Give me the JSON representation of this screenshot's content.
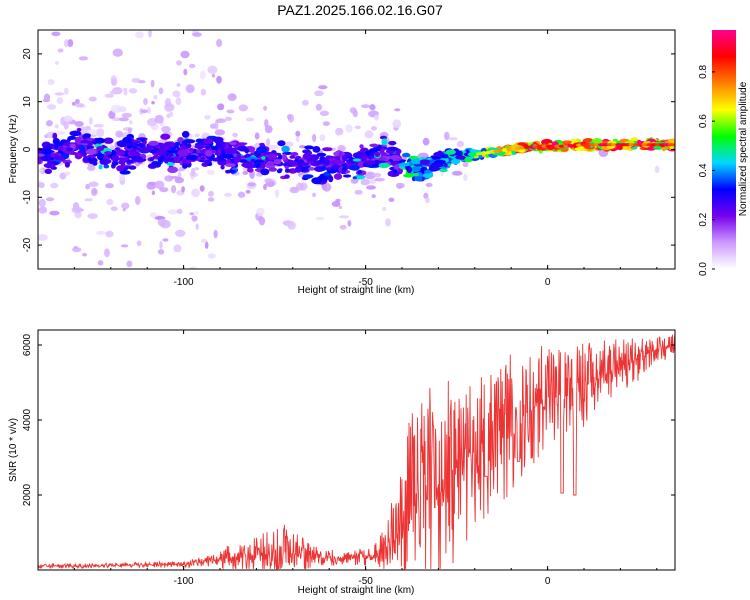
{
  "title": "PAZ1.2025.166.02.16.G07",
  "chart_data": [
    {
      "type": "heatmap",
      "title": "PAZ1.2025.166.02.16.G07",
      "xlabel": "Height of straight line (km)",
      "ylabel": "Frequency (Hz)",
      "xlim": [
        -140,
        35
      ],
      "ylim": [
        -25,
        25
      ],
      "xticks": [
        -100,
        -50,
        0
      ],
      "yticks": [
        -20,
        -10,
        0,
        10,
        20
      ],
      "colorbar": {
        "label": "Normalized spectral amplitude",
        "range": [
          0,
          0.97
        ],
        "ticks": [
          "0.0",
          "0.2",
          "0.4",
          "0.6",
          "0.8"
        ],
        "colors": [
          "#ffffff",
          "#cc99ff",
          "#7700ee",
          "#0000ff",
          "#00d8ff",
          "#00ff00",
          "#ffff00",
          "#ff7f00",
          "#ff0000",
          "#ff0090"
        ]
      },
      "ridge": [
        {
          "x": -140,
          "y": -1.5,
          "a": 0.25
        },
        {
          "x": -130,
          "y": 0.5,
          "a": 0.28
        },
        {
          "x": -120,
          "y": -1.5,
          "a": 0.3
        },
        {
          "x": -110,
          "y": 0,
          "a": 0.32
        },
        {
          "x": -100,
          "y": -0.5,
          "a": 0.32
        },
        {
          "x": -90,
          "y": -1,
          "a": 0.35
        },
        {
          "x": -85,
          "y": -1.5,
          "a": 0.36
        },
        {
          "x": -80,
          "y": -2,
          "a": 0.34
        },
        {
          "x": -70,
          "y": -2.5,
          "a": 0.32
        },
        {
          "x": -60,
          "y": -3,
          "a": 0.32
        },
        {
          "x": -55,
          "y": -3,
          "a": 0.33
        },
        {
          "x": -48,
          "y": -1.5,
          "a": 0.35
        },
        {
          "x": -43,
          "y": -1.5,
          "a": 0.4
        },
        {
          "x": -38,
          "y": -4,
          "a": 0.5
        },
        {
          "x": -33,
          "y": -4.5,
          "a": 0.4
        },
        {
          "x": -30,
          "y": -2,
          "a": 0.42
        },
        {
          "x": -27,
          "y": -1.5,
          "a": 0.45
        },
        {
          "x": -20,
          "y": -1,
          "a": 0.55
        },
        {
          "x": -15,
          "y": -0.5,
          "a": 0.7
        },
        {
          "x": -10,
          "y": 0,
          "a": 0.8
        },
        {
          "x": -5,
          "y": 0.5,
          "a": 0.85
        },
        {
          "x": 0,
          "y": 0.7,
          "a": 0.9
        },
        {
          "x": 5,
          "y": 0.7,
          "a": 0.9
        },
        {
          "x": 10,
          "y": 1,
          "a": 0.85
        },
        {
          "x": 15,
          "y": 1,
          "a": 0.9
        },
        {
          "x": 20,
          "y": 1,
          "a": 0.88
        },
        {
          "x": 25,
          "y": 1,
          "a": 0.9
        },
        {
          "x": 30,
          "y": 1,
          "a": 0.9
        },
        {
          "x": 35,
          "y": 1,
          "a": 0.9
        }
      ]
    },
    {
      "type": "line",
      "title": "",
      "xlabel": "Height of straight line (km)",
      "ylabel": "SNR (10 * v/v)",
      "xlim": [
        -140,
        35
      ],
      "ylim": [
        0,
        6400
      ],
      "xticks": [
        -100,
        -50,
        0
      ],
      "yticks": [
        2000,
        4000,
        6000
      ],
      "color": "#ee3333",
      "envelope": [
        {
          "x": -140,
          "base": 100,
          "amp": 100
        },
        {
          "x": -120,
          "base": 120,
          "amp": 110
        },
        {
          "x": -100,
          "base": 150,
          "amp": 150
        },
        {
          "x": -92,
          "base": 250,
          "amp": 250
        },
        {
          "x": -88,
          "base": 350,
          "amp": 600
        },
        {
          "x": -80,
          "base": 400,
          "amp": 900
        },
        {
          "x": -73,
          "base": 500,
          "amp": 1300
        },
        {
          "x": -68,
          "base": 400,
          "amp": 900
        },
        {
          "x": -62,
          "base": 350,
          "amp": 400
        },
        {
          "x": -55,
          "base": 300,
          "amp": 300
        },
        {
          "x": -48,
          "base": 350,
          "amp": 450
        },
        {
          "x": -42,
          "base": 800,
          "amp": 1200
        },
        {
          "x": -38,
          "base": 1800,
          "amp": 2500
        },
        {
          "x": -33,
          "base": 1500,
          "amp": 3500
        },
        {
          "x": -30,
          "base": 2000,
          "amp": 3800
        },
        {
          "x": -25,
          "base": 2600,
          "amp": 2500
        },
        {
          "x": -18,
          "base": 3200,
          "amp": 2100
        },
        {
          "x": -10,
          "base": 3700,
          "amp": 2100
        },
        {
          "x": -5,
          "base": 4200,
          "amp": 1900
        },
        {
          "x": 0,
          "base": 4600,
          "amp": 1400
        },
        {
          "x": 5,
          "base": 4700,
          "amp": 1300
        },
        {
          "x": 12,
          "base": 5000,
          "amp": 1200
        },
        {
          "x": 20,
          "base": 5400,
          "amp": 900
        },
        {
          "x": 28,
          "base": 5800,
          "amp": 500
        },
        {
          "x": 35,
          "base": 6000,
          "amp": 350
        }
      ],
      "dips": [
        {
          "x": 4,
          "y": 2050
        },
        {
          "x": 7.5,
          "y": 2000
        },
        {
          "x": -17,
          "y": 2500
        },
        {
          "x": -8,
          "y": 2900
        }
      ]
    }
  ]
}
